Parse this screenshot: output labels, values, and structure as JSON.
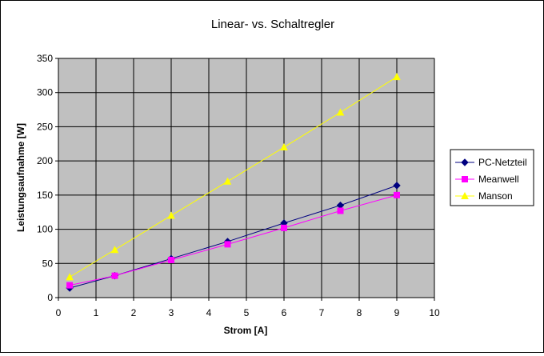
{
  "chart_data": {
    "type": "scatter",
    "title": "Linear- vs. Schaltregler",
    "xlabel": "Strom [A]",
    "ylabel": "Leistungsaufnahme [W]",
    "xlim": [
      0,
      10
    ],
    "ylim": [
      0,
      350
    ],
    "xticks": [
      "0",
      "1",
      "2",
      "3",
      "4",
      "5",
      "6",
      "7",
      "8",
      "9",
      "10"
    ],
    "yticks": [
      "0",
      "50",
      "100",
      "150",
      "200",
      "250",
      "300",
      "350"
    ],
    "grid": true,
    "legend_position": "right",
    "plot_background": "#c0c0c0",
    "series": [
      {
        "name": "PC-Netzteil",
        "color": "#000080",
        "marker": "diamond",
        "x": [
          0.3,
          1.5,
          3,
          4.5,
          6,
          7.5,
          9
        ],
        "y": [
          14,
          32,
          57,
          82,
          109,
          135,
          164
        ]
      },
      {
        "name": "Meanwell",
        "color": "#ff00ff",
        "marker": "square",
        "x": [
          0.3,
          1.5,
          3,
          4.5,
          6,
          7.5,
          9
        ],
        "y": [
          18,
          32,
          55,
          78,
          102,
          127,
          150
        ]
      },
      {
        "name": "Manson",
        "color": "#ffff00",
        "marker": "triangle",
        "x": [
          0.3,
          1.5,
          3,
          4.5,
          6,
          7.5,
          9
        ],
        "y": [
          30,
          70,
          120,
          170,
          220,
          271,
          323
        ]
      }
    ]
  }
}
